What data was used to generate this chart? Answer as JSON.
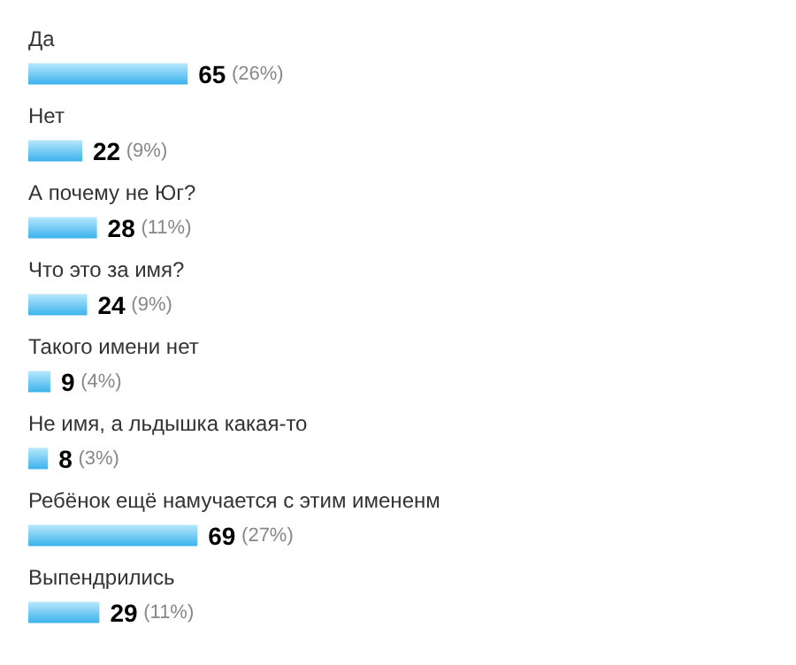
{
  "chart_data": {
    "type": "bar",
    "orientation": "horizontal",
    "categories": [
      "Да",
      "Нет",
      "А почему не Юг?",
      "Что это за имя?",
      "Такого имени нет",
      "Не имя, а льдышка какая-то",
      "Ребёнок ещё намучается с этим имененм",
      "Выпендрились"
    ],
    "values": [
      65,
      22,
      28,
      24,
      9,
      8,
      69,
      29
    ],
    "value_labels": [
      "65 (26%)",
      "22 (9%)",
      "28 (11%)",
      "24 (9%)",
      "9 (4%)",
      "8 (3%)",
      "69 (27%)",
      "29 (11%)"
    ],
    "color": "#3ab2ec"
  }
}
